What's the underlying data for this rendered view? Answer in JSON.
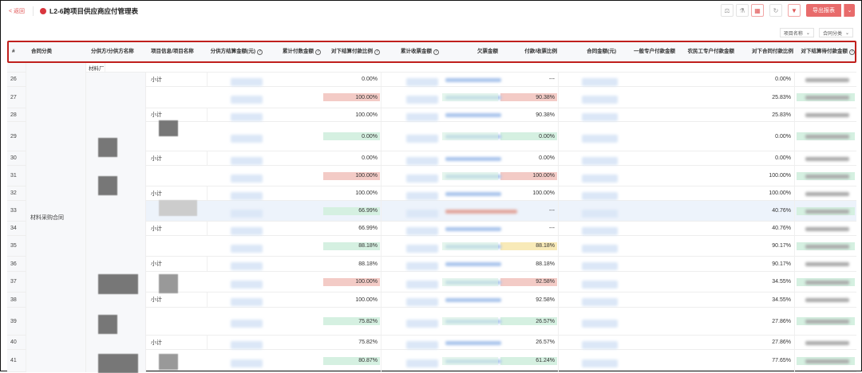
{
  "header": {
    "back_label": "< 返回",
    "title": "L2-6跨项目供应商应付管理表",
    "export_label": "导出报表"
  },
  "filters": [
    {
      "label": "项目名称"
    },
    {
      "label": "合同分类"
    }
  ],
  "columns": [
    "#",
    "合同分类",
    "分供方/分供方名称",
    "项目信息/项目名称",
    "分供方结算金额(元)",
    "累计付数金额",
    "对下结算付款比例",
    "累计收票金额",
    "欠票金额",
    "付款/收票比例",
    "合同金额(元)",
    "一般专户付款金额",
    "农民工专户付款金额",
    "对下合同付款比例",
    "对下结算待付款金额"
  ],
  "help_columns": [
    4,
    5,
    6,
    7,
    14
  ],
  "group": {
    "contract_category": "材料采购合同",
    "supplier_partial": "材料厂"
  },
  "subtotal_label": "小计",
  "colors": {
    "red": "#f3cbc6",
    "green": "#d5f0e1",
    "yellow": "#f8eab8",
    "accent": "#c0201d"
  },
  "rows": [
    {
      "n": "26",
      "sub": true,
      "settle_ratio": "0.00%",
      "settle_hl": "",
      "pay_ratio": "---",
      "pay_hl": "",
      "contract_ratio": "0.00%",
      "pending_hl": ""
    },
    {
      "n": "27",
      "sub": false,
      "settle_ratio": "100.00%",
      "settle_hl": "red",
      "pay_ratio": "90.38%",
      "pay_hl": "red",
      "contract_ratio": "25.83%",
      "pending_hl": "green"
    },
    {
      "n": "28",
      "sub": true,
      "settle_ratio": "100.00%",
      "settle_hl": "",
      "pay_ratio": "90.38%",
      "pay_hl": "",
      "contract_ratio": "25.83%",
      "pending_hl": ""
    },
    {
      "n": "29",
      "sub": false,
      "settle_ratio": "0.00%",
      "settle_hl": "green",
      "pay_ratio": "0.00%",
      "pay_hl": "green",
      "contract_ratio": "0.00%",
      "pending_hl": "green"
    },
    {
      "n": "30",
      "sub": true,
      "settle_ratio": "0.00%",
      "settle_hl": "",
      "pay_ratio": "0.00%",
      "pay_hl": "",
      "contract_ratio": "0.00%",
      "pending_hl": ""
    },
    {
      "n": "31",
      "sub": false,
      "settle_ratio": "100.00%",
      "settle_hl": "red",
      "pay_ratio": "100.00%",
      "pay_hl": "red",
      "contract_ratio": "100.00%",
      "pending_hl": "green"
    },
    {
      "n": "32",
      "sub": true,
      "settle_ratio": "100.00%",
      "settle_hl": "",
      "pay_ratio": "100.00%",
      "pay_hl": "",
      "contract_ratio": "100.00%",
      "pending_hl": ""
    },
    {
      "n": "33",
      "sub": false,
      "settle_ratio": "66.99%",
      "settle_hl": "green",
      "pay_ratio": "---",
      "pay_hl": "",
      "contract_ratio": "40.76%",
      "pending_hl": "green"
    },
    {
      "n": "34",
      "sub": true,
      "settle_ratio": "66.99%",
      "settle_hl": "",
      "pay_ratio": "---",
      "pay_hl": "",
      "contract_ratio": "40.76%",
      "pending_hl": ""
    },
    {
      "n": "35",
      "sub": false,
      "settle_ratio": "88.18%",
      "settle_hl": "green",
      "pay_ratio": "88.18%",
      "pay_hl": "yellow",
      "contract_ratio": "90.17%",
      "pending_hl": "green"
    },
    {
      "n": "36",
      "sub": true,
      "settle_ratio": "88.18%",
      "settle_hl": "",
      "pay_ratio": "88.18%",
      "pay_hl": "",
      "contract_ratio": "90.17%",
      "pending_hl": ""
    },
    {
      "n": "37",
      "sub": false,
      "settle_ratio": "100.00%",
      "settle_hl": "red",
      "pay_ratio": "92.58%",
      "pay_hl": "red",
      "contract_ratio": "34.55%",
      "pending_hl": "green"
    },
    {
      "n": "38",
      "sub": true,
      "settle_ratio": "100.00%",
      "settle_hl": "",
      "pay_ratio": "92.58%",
      "pay_hl": "",
      "contract_ratio": "34.55%",
      "pending_hl": ""
    },
    {
      "n": "39",
      "sub": false,
      "settle_ratio": "75.82%",
      "settle_hl": "green",
      "pay_ratio": "26.57%",
      "pay_hl": "green",
      "contract_ratio": "27.86%",
      "pending_hl": "green"
    },
    {
      "n": "40",
      "sub": true,
      "settle_ratio": "75.82%",
      "settle_hl": "",
      "pay_ratio": "26.57%",
      "pay_hl": "",
      "contract_ratio": "27.86%",
      "pending_hl": ""
    },
    {
      "n": "41",
      "sub": false,
      "settle_ratio": "80.87%",
      "settle_hl": "green",
      "pay_ratio": "61.24%",
      "pay_hl": "green",
      "contract_ratio": "77.65%",
      "pending_hl": "green"
    }
  ]
}
